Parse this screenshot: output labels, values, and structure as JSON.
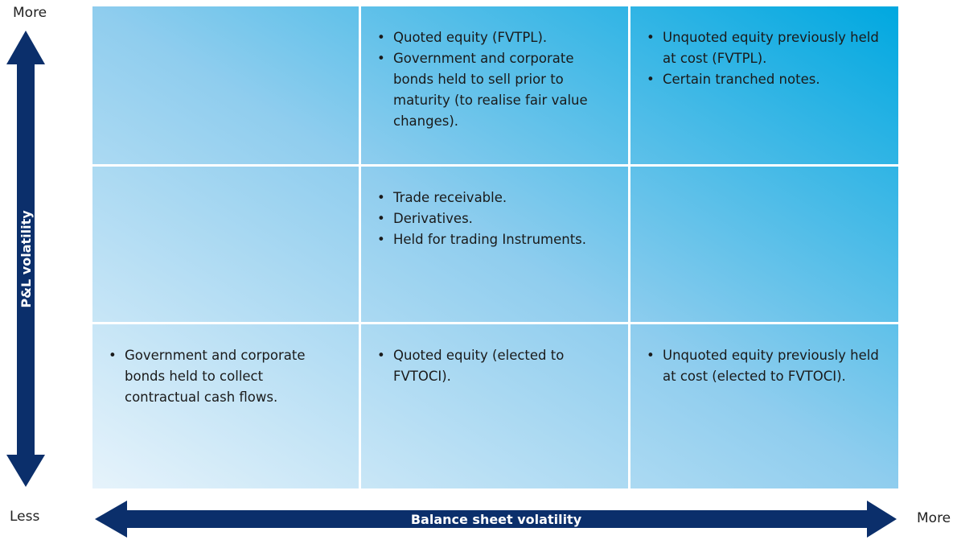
{
  "y_axis": {
    "label": "P&L volatility",
    "top": "More",
    "bottom": "Less"
  },
  "x_axis": {
    "label": "Balance sheet volatility",
    "left": "Less",
    "right": "More"
  },
  "cells": [
    [
      [],
      [
        "Quoted equity (FVTPL).",
        "Government and corporate bonds held to sell prior to maturity (to realise fair value changes)."
      ],
      [
        "Unquoted equity previously held at cost (FVTPL).",
        "Certain tranched notes."
      ]
    ],
    [
      [],
      [
        "Trade receivable.",
        "Derivatives.",
        "Held for trading Instruments."
      ],
      []
    ],
    [
      [
        "Government and corporate bonds held to collect contractual cash flows."
      ],
      [
        "Quoted equity (elected to FVTOCI)."
      ],
      [
        "Unquoted equity previously held at cost (elected to FVTOCI)."
      ]
    ]
  ]
}
